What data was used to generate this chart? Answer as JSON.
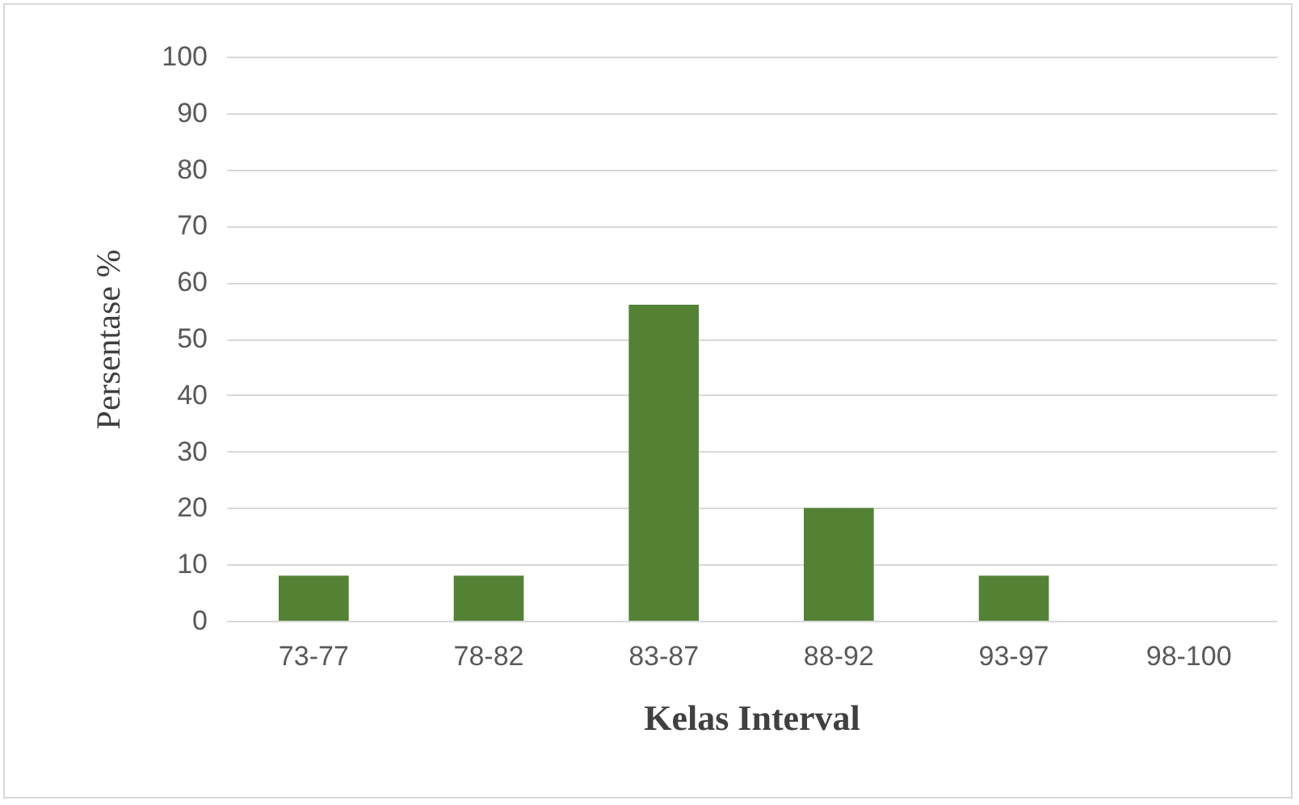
{
  "chart_data": {
    "type": "bar",
    "xlabel": "Kelas Interval",
    "ylabel": "Persentase %",
    "categories": [
      "73-77",
      "78-82",
      "83-87",
      "88-92",
      "93-97",
      "98-100"
    ],
    "values": [
      8,
      8,
      56,
      20,
      8,
      0
    ],
    "color": "#548235",
    "ylim": [
      0,
      100
    ],
    "yticks": [
      0,
      10,
      20,
      30,
      40,
      50,
      60,
      70,
      80,
      90,
      100
    ],
    "grid": "y"
  }
}
